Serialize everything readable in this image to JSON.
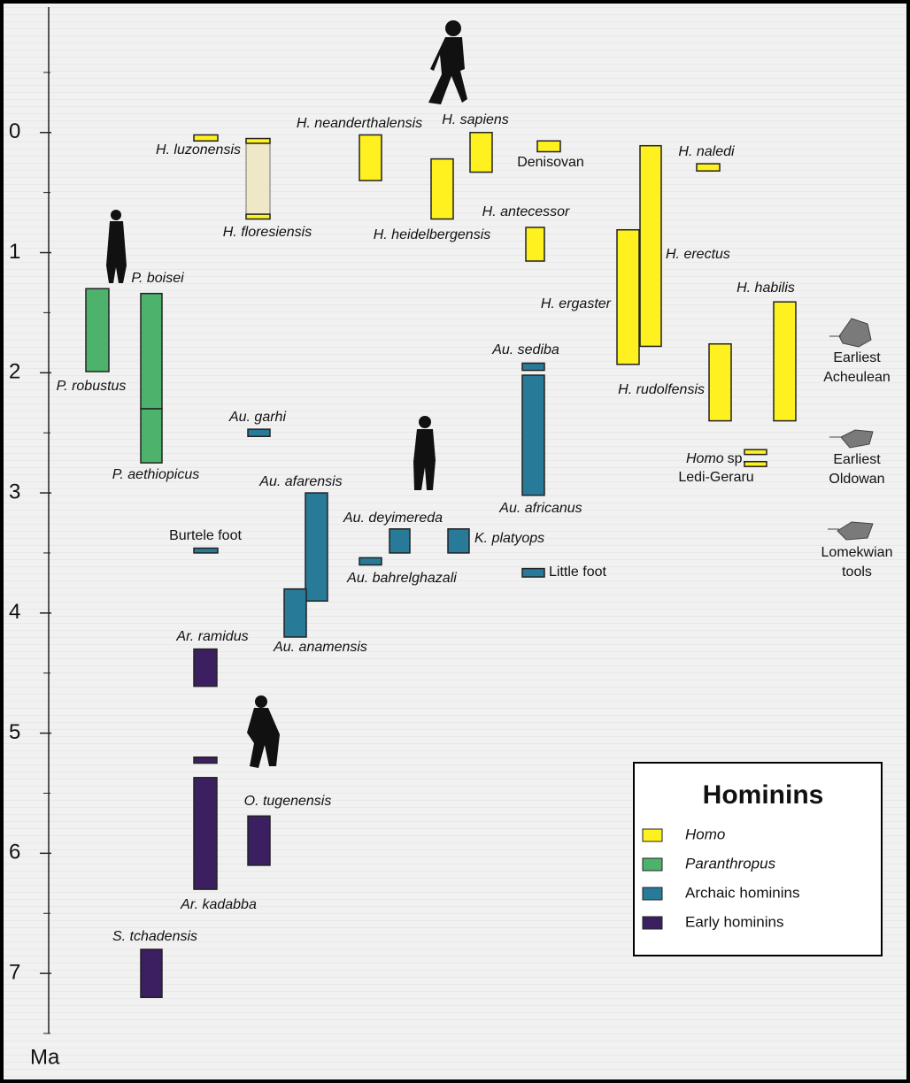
{
  "chart_data": {
    "type": "range",
    "y_label": "Ma",
    "ylim": [
      -1,
      7.5
    ],
    "y_inverted": true,
    "yticks": [
      0,
      1,
      2,
      3,
      4,
      5,
      6,
      7
    ],
    "minor_yticks": [
      -0.5,
      0.5,
      1.5,
      2.5,
      3.5,
      4.5,
      5.5,
      6.5,
      7.5
    ],
    "legend_title": "Hominins",
    "uncertain_color": "#efe8c8",
    "series": [
      {
        "name": "Homo",
        "color": "#fff11f",
        "items": [
          {
            "name": "H. luzonensis",
            "ranges": [
              [
                0.02,
                0.07
              ]
            ]
          },
          {
            "name": "H. floresiensis",
            "ranges": [
              [
                0.05,
                0.09
              ],
              [
                0.68,
                0.72
              ]
            ],
            "uncertain_range": [
              0.09,
              0.68
            ]
          },
          {
            "name": "H. neanderthalensis",
            "ranges": [
              [
                0.02,
                0.4
              ]
            ]
          },
          {
            "name": "H. sapiens",
            "ranges": [
              [
                0,
                0.33
              ]
            ]
          },
          {
            "name": "Denisovan",
            "ranges": [
              [
                0.07,
                0.16
              ]
            ]
          },
          {
            "name": "H. heidelbergensis",
            "ranges": [
              [
                0.22,
                0.72
              ]
            ]
          },
          {
            "name": "H. antecessor",
            "ranges": [
              [
                0.79,
                1.07
              ]
            ]
          },
          {
            "name": "H. erectus",
            "ranges": [
              [
                0.11,
                1.78
              ]
            ]
          },
          {
            "name": "H. naledi",
            "ranges": [
              [
                0.26,
                0.32
              ]
            ]
          },
          {
            "name": "H. ergaster",
            "ranges": [
              [
                0.81,
                1.93
              ]
            ]
          },
          {
            "name": "H. habilis",
            "ranges": [
              [
                1.41,
                2.4
              ]
            ]
          },
          {
            "name": "H. rudolfensis",
            "ranges": [
              [
                1.76,
                2.4
              ]
            ]
          },
          {
            "name": "Homo",
            "suffix": "sp.",
            "sublabel": "Ledi-Geraru",
            "ranges": [
              [
                2.64,
                2.68
              ],
              [
                2.74,
                2.78
              ]
            ]
          }
        ]
      },
      {
        "name": "Paranthropus",
        "color": "#4db36c",
        "items": [
          {
            "name": "P. robustus",
            "ranges": [
              [
                1.3,
                1.99
              ]
            ]
          },
          {
            "name": "P. boisei",
            "ranges": [
              [
                1.34,
                2.3
              ]
            ]
          },
          {
            "name": "P. aethiopicus",
            "ranges": [
              [
                2.3,
                2.75
              ]
            ]
          }
        ]
      },
      {
        "name": "Archaic hominins",
        "color": "#287a99",
        "items": [
          {
            "name": "Au. garhi",
            "ranges": [
              [
                2.47,
                2.53
              ]
            ]
          },
          {
            "name": "Au. sediba",
            "ranges": [
              [
                1.92,
                1.98
              ]
            ]
          },
          {
            "name": "Au. africanus",
            "ranges": [
              [
                2.02,
                3.02
              ]
            ]
          },
          {
            "name": "Au. afarensis",
            "ranges": [
              [
                3.0,
                3.9
              ]
            ]
          },
          {
            "name": "Au. anamensis",
            "ranges": [
              [
                3.8,
                4.2
              ]
            ]
          },
          {
            "name": "Au. deyimereda",
            "ranges": [
              [
                3.3,
                3.5
              ]
            ]
          },
          {
            "name": "Au. bahrelghazali",
            "ranges": [
              [
                3.54,
                3.6
              ]
            ]
          },
          {
            "name": "K. platyops",
            "ranges": [
              [
                3.3,
                3.5
              ]
            ]
          },
          {
            "name": "Little foot",
            "ranges": [
              [
                3.63,
                3.7
              ]
            ]
          },
          {
            "name": "Burtele foot",
            "ranges": [
              [
                3.46,
                3.5
              ]
            ]
          }
        ]
      },
      {
        "name": "Early hominins",
        "color": "#3c1f61",
        "items": [
          {
            "name": "Ar. ramidus",
            "ranges": [
              [
                4.3,
                4.61
              ]
            ]
          },
          {
            "name": "Ar. kadabba",
            "ranges": [
              [
                5.2,
                5.25
              ],
              [
                5.37,
                6.3
              ]
            ]
          },
          {
            "name": "O. tugenensis",
            "ranges": [
              [
                5.69,
                6.1
              ]
            ]
          },
          {
            "name": "S. tchadensis",
            "ranges": [
              [
                6.8,
                7.2
              ]
            ]
          }
        ]
      }
    ],
    "annotations": [
      {
        "lines": [
          "Earliest",
          "Acheulean"
        ]
      },
      {
        "lines": [
          "Earliest",
          "Oldowan"
        ]
      },
      {
        "lines": [
          "Lomekwian",
          "tools"
        ]
      }
    ]
  }
}
